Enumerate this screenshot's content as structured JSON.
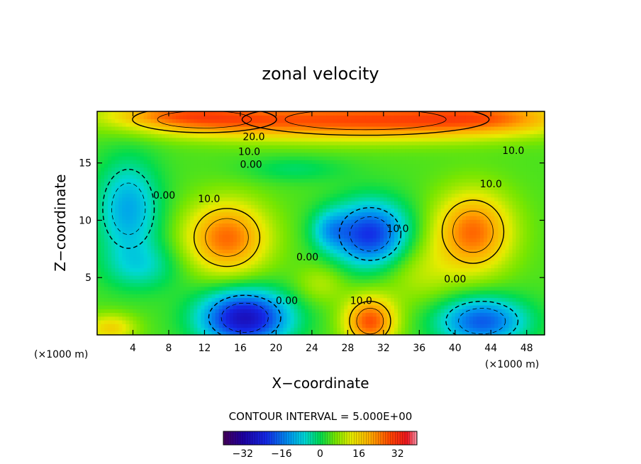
{
  "chart_data": {
    "type": "heatmap",
    "title": "zonal velocity",
    "xlabel": "X−coordinate",
    "ylabel": "Z−coordinate",
    "x_unit": "(×1000 m)",
    "y_unit": "(×1000 m)",
    "xlim": [
      0,
      50
    ],
    "ylim": [
      0,
      19.5
    ],
    "x_ticks": [
      4,
      8,
      12,
      16,
      20,
      24,
      28,
      32,
      36,
      40,
      44,
      48
    ],
    "y_ticks": [
      5,
      10,
      15
    ],
    "contour_interval_text": "CONTOUR INTERVAL = 5.000E+00",
    "contour_labels": [
      {
        "text": "20.0",
        "x": 17.5,
        "y": 17.3
      },
      {
        "text": "10.0",
        "x": 17.0,
        "y": 16.0
      },
      {
        "text": "0.00",
        "x": 17.2,
        "y": 14.9
      },
      {
        "text": "10.0",
        "x": 46.5,
        "y": 16.1
      },
      {
        "text": "10.0",
        "x": 44.0,
        "y": 13.2
      },
      {
        "text": "0.00",
        "x": 7.5,
        "y": 12.2
      },
      {
        "text": "10.0",
        "x": 12.5,
        "y": 11.9
      },
      {
        "text": "0.00",
        "x": 23.5,
        "y": 6.8
      },
      {
        "text": "10.0",
        "x": 33.6,
        "y": 9.3
      },
      {
        "text": "0.00",
        "x": 40.0,
        "y": 4.9
      },
      {
        "text": "0.00",
        "x": 21.2,
        "y": 3.0
      },
      {
        "text": "10.0",
        "x": 29.5,
        "y": 3.0
      }
    ],
    "colorbar": {
      "range": [
        -40,
        40
      ],
      "ticks": [
        -32,
        -16,
        0,
        16,
        32
      ],
      "tick_labels": [
        "−32",
        "−16",
        "0",
        "16",
        "32"
      ]
    },
    "blobs": [
      {
        "x": 30,
        "y": 18.8,
        "sx": 12,
        "sy": 1.2,
        "a": 24
      },
      {
        "x": 12,
        "y": 18.8,
        "sx": 7,
        "sy": 1.0,
        "a": 14
      },
      {
        "x": 8,
        "y": 19.3,
        "sx": 5,
        "sy": 0.6,
        "a": 8
      },
      {
        "x": 44,
        "y": 19,
        "sx": 6,
        "sy": 1.0,
        "a": 12
      },
      {
        "x": 14.5,
        "y": 8.5,
        "sx": 3.2,
        "sy": 2.2,
        "a": 22
      },
      {
        "x": 42,
        "y": 9.0,
        "sx": 3.0,
        "sy": 2.4,
        "a": 22
      },
      {
        "x": 30.5,
        "y": 8.8,
        "sx": 3.0,
        "sy": 2.0,
        "a": -26
      },
      {
        "x": 26,
        "y": 9.2,
        "sx": 1.5,
        "sy": 1.2,
        "a": -10
      },
      {
        "x": 3.5,
        "y": 11.0,
        "sx": 2.5,
        "sy": 3.0,
        "a": -15
      },
      {
        "x": 16.5,
        "y": 1.5,
        "sx": 3.5,
        "sy": 1.7,
        "a": -32
      },
      {
        "x": 43,
        "y": 1.2,
        "sx": 3.5,
        "sy": 1.5,
        "a": -22
      },
      {
        "x": 30.5,
        "y": 1.2,
        "sx": 2.0,
        "sy": 1.5,
        "a": 24
      },
      {
        "x": 1.5,
        "y": 0.6,
        "sx": 2.0,
        "sy": 0.9,
        "a": 12
      },
      {
        "x": 22,
        "y": 14.5,
        "sx": 4,
        "sy": 0.8,
        "a": -5
      },
      {
        "x": 5,
        "y": 6.0,
        "sx": 3,
        "sy": 1.5,
        "a": -8
      },
      {
        "x": 36,
        "y": 5.5,
        "sx": 3,
        "sy": 2.0,
        "a": 6
      },
      {
        "x": 25,
        "y": 4.5,
        "sx": 2,
        "sy": 1.2,
        "a": 6
      }
    ],
    "base_value": 4
  }
}
